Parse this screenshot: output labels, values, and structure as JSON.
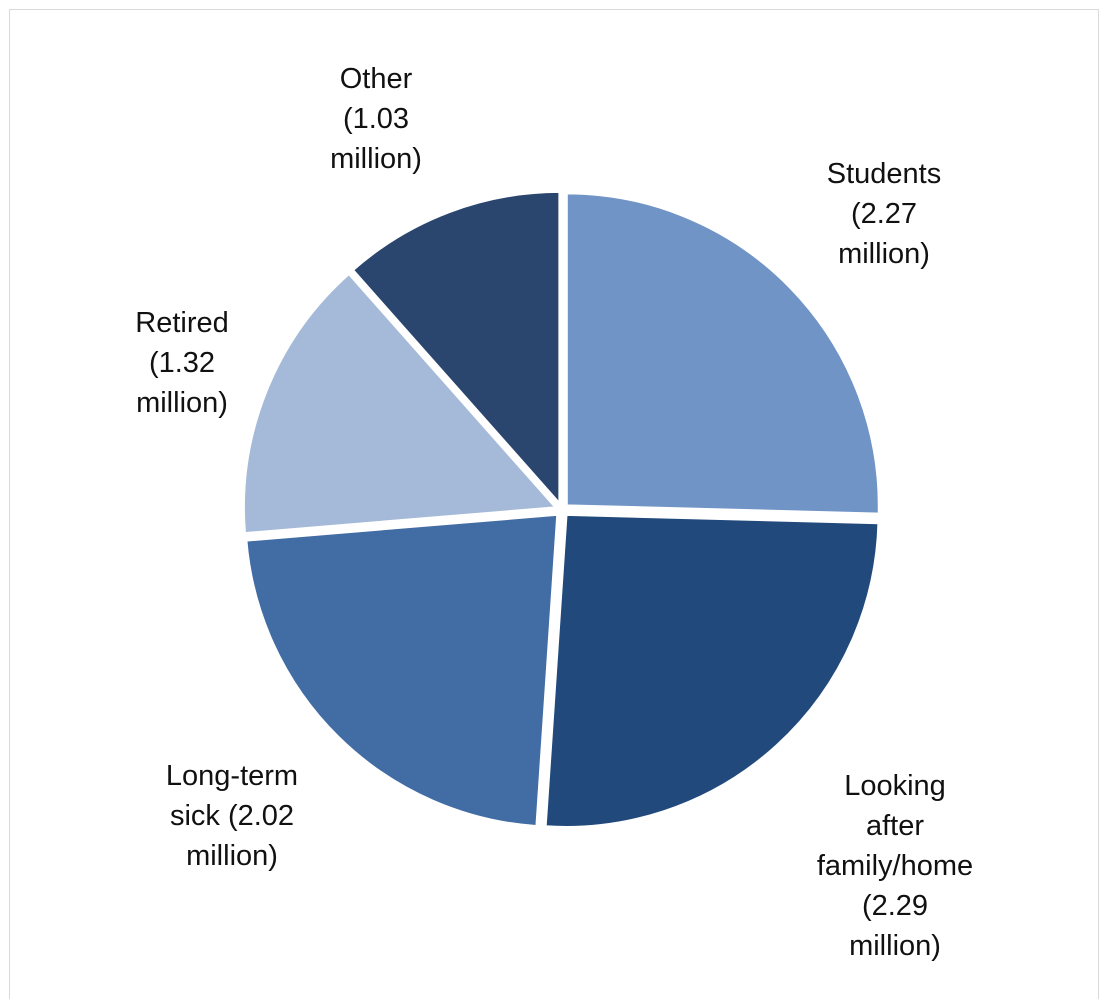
{
  "chart_data": {
    "type": "pie",
    "title": "",
    "slices": [
      {
        "name": "Students",
        "value": 2.27,
        "color": "#7094C6",
        "label_lines": [
          "Students",
          "(2.27",
          "million)"
        ]
      },
      {
        "name": "Looking after family/home",
        "value": 2.29,
        "color": "#21497C",
        "label_lines": [
          "Looking",
          "after",
          "family/home",
          "(2.29",
          "million)"
        ]
      },
      {
        "name": "Long-term sick",
        "value": 2.02,
        "color": "#426CA4",
        "label_lines": [
          "Long-term",
          "sick (2.02",
          "million)"
        ]
      },
      {
        "name": "Retired",
        "value": 1.32,
        "color": "#A5BAD9",
        "label_lines": [
          "Retired",
          "(1.32",
          "million)"
        ]
      },
      {
        "name": "Other",
        "value": 1.03,
        "color": "#2A466E",
        "label_lines": [
          "Other",
          "(1.03",
          "million)"
        ]
      }
    ],
    "start": "12 o'clock",
    "direction": "clockwise",
    "legend": "none",
    "labels": "outside"
  }
}
